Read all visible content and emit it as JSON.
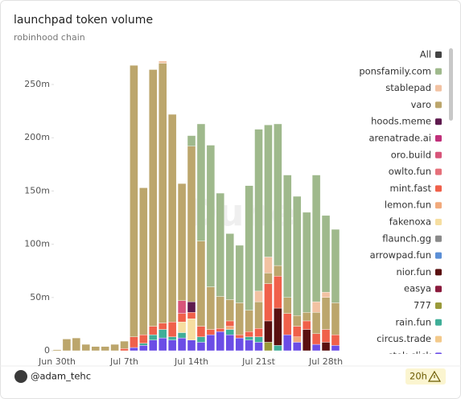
{
  "chart_data": {
    "type": "stacked_bar",
    "title": "launchpad token volume",
    "subtitle": "robinhood chain",
    "watermark": "Dune",
    "legend_all": "All",
    "footer_user": "@adam_tehc",
    "footer_age": "20h",
    "categories": [
      "Jun 30th",
      null,
      null,
      null,
      null,
      null,
      null,
      "Jul 7th",
      null,
      null,
      null,
      null,
      null,
      null,
      "Jul 14th",
      null,
      null,
      null,
      null,
      null,
      null,
      "Jul 21st",
      null,
      null,
      null,
      null,
      null,
      null,
      "Jul 28th",
      null
    ],
    "ylim": [
      0,
      280
    ],
    "yticks": [
      0,
      {
        "value": 50,
        "label": "50m"
      },
      {
        "value": 100,
        "label": "100m"
      },
      {
        "value": 150,
        "label": "150m"
      },
      {
        "value": 200,
        "label": "200m"
      },
      {
        "value": 250,
        "label": "250m"
      }
    ],
    "grid": false,
    "legend": "right",
    "series": [
      {
        "name": "ponsfamily.com",
        "color": "#9fb98c",
        "values": [
          0,
          0,
          0,
          0,
          0,
          0,
          0,
          0,
          0,
          0,
          0,
          0,
          0,
          0,
          10,
          110,
          133,
          97,
          62,
          54,
          117,
          152,
          124,
          133,
          115,
          112,
          94,
          119,
          72,
          69
        ]
      },
      {
        "name": "stablepad",
        "color": "#f2c2a2",
        "values": [
          0,
          0,
          0,
          0,
          0,
          0,
          0,
          0,
          0,
          0,
          0,
          2,
          0,
          0,
          0,
          0,
          0,
          0,
          0,
          0,
          0,
          10,
          15,
          0,
          0,
          0,
          0,
          10,
          5,
          0
        ]
      },
      {
        "name": "varo",
        "color": "#bca66c",
        "values": [
          1,
          11,
          12,
          6,
          4,
          4,
          6,
          7,
          255,
          138,
          241,
          244,
          195,
          110,
          146,
          80,
          40,
          30,
          20,
          30,
          20,
          25,
          10,
          10,
          15,
          10,
          8,
          20,
          30,
          30
        ]
      },
      {
        "name": "hoods.meme",
        "color": "#5e1a4e",
        "values": [
          0,
          0,
          0,
          0,
          0,
          0,
          0,
          0,
          0,
          0,
          0,
          0,
          0,
          0,
          10,
          0,
          0,
          0,
          0,
          0,
          0,
          0,
          0,
          0,
          0,
          0,
          0,
          0,
          0,
          0
        ]
      },
      {
        "name": "arenatrade.ai",
        "color": "#c0307a",
        "values": [
          0,
          0,
          0,
          0,
          0,
          0,
          0,
          0,
          0,
          0,
          0,
          0,
          0,
          0,
          0,
          0,
          0,
          0,
          0,
          0,
          0,
          0,
          0,
          0,
          0,
          0,
          0,
          0,
          0,
          0
        ]
      },
      {
        "name": "oro.build",
        "color": "#d8557a",
        "values": [
          0,
          0,
          0,
          0,
          0,
          0,
          0,
          0,
          0,
          0,
          0,
          0,
          0,
          12,
          0,
          0,
          0,
          0,
          0,
          0,
          0,
          0,
          0,
          0,
          0,
          0,
          0,
          0,
          0,
          0
        ]
      },
      {
        "name": "owlto.fun",
        "color": "#e6707a",
        "values": [
          0,
          0,
          0,
          0,
          0,
          0,
          0,
          0,
          0,
          0,
          0,
          0,
          0,
          0,
          0,
          0,
          0,
          0,
          0,
          0,
          0,
          0,
          0,
          0,
          0,
          0,
          0,
          0,
          0,
          0
        ]
      },
      {
        "name": "mint.fast",
        "color": "#f0604a",
        "values": [
          0,
          0,
          0,
          0,
          0,
          0,
          0,
          2,
          10,
          8,
          8,
          6,
          14,
          8,
          6,
          10,
          5,
          3,
          5,
          3,
          5,
          8,
          35,
          30,
          20,
          10,
          8,
          10,
          12,
          10
        ]
      },
      {
        "name": "lemon.fun",
        "color": "#f2aa7c",
        "values": [
          0,
          0,
          0,
          0,
          0,
          0,
          0,
          0,
          0,
          0,
          0,
          0,
          0,
          0,
          0,
          0,
          0,
          0,
          3,
          0,
          0,
          0,
          0,
          0,
          0,
          5,
          0,
          0,
          0,
          0
        ]
      },
      {
        "name": "fakenoxa",
        "color": "#f6dea0",
        "values": [
          0,
          0,
          0,
          0,
          0,
          0,
          0,
          0,
          0,
          0,
          0,
          0,
          0,
          10,
          20,
          0,
          0,
          0,
          0,
          0,
          0,
          0,
          0,
          0,
          0,
          0,
          0,
          0,
          0,
          0
        ]
      },
      {
        "name": "flaunch.gg",
        "color": "#8a8a8a",
        "values": [
          0,
          0,
          0,
          0,
          0,
          0,
          0,
          0,
          0,
          0,
          0,
          0,
          0,
          0,
          0,
          0,
          0,
          0,
          0,
          0,
          0,
          0,
          0,
          0,
          0,
          0,
          0,
          0,
          0,
          0
        ]
      },
      {
        "name": "arrowpad.fun",
        "color": "#5b8fd6",
        "values": [
          0,
          0,
          0,
          0,
          0,
          0,
          0,
          0,
          0,
          0,
          0,
          0,
          0,
          0,
          0,
          0,
          0,
          0,
          0,
          0,
          0,
          0,
          0,
          0,
          0,
          0,
          0,
          0,
          0,
          0
        ]
      },
      {
        "name": "nior.fun",
        "color": "#5a1010",
        "values": [
          0,
          0,
          0,
          0,
          0,
          0,
          0,
          0,
          0,
          0,
          0,
          0,
          0,
          0,
          0,
          0,
          0,
          0,
          0,
          0,
          0,
          0,
          20,
          35,
          0,
          0,
          20,
          0,
          8,
          0
        ]
      },
      {
        "name": "easya",
        "color": "#8a1a3c",
        "values": [
          0,
          0,
          0,
          0,
          0,
          0,
          0,
          0,
          0,
          0,
          0,
          0,
          0,
          0,
          0,
          0,
          0,
          0,
          0,
          0,
          0,
          0,
          0,
          0,
          0,
          0,
          0,
          0,
          0,
          0
        ]
      },
      {
        "name": "777",
        "color": "#9a9a3a",
        "values": [
          0,
          0,
          0,
          0,
          0,
          0,
          0,
          0,
          0,
          0,
          0,
          0,
          0,
          0,
          0,
          0,
          0,
          0,
          0,
          0,
          0,
          0,
          8,
          0,
          0,
          0,
          0,
          0,
          0,
          0
        ]
      },
      {
        "name": "rain.fun",
        "color": "#3fae98",
        "values": [
          0,
          0,
          0,
          0,
          0,
          0,
          0,
          0,
          0,
          2,
          5,
          8,
          3,
          5,
          0,
          5,
          0,
          0,
          5,
          0,
          3,
          5,
          0,
          5,
          0,
          0,
          0,
          0,
          0,
          0
        ]
      },
      {
        "name": "circus.trade",
        "color": "#f3c98a",
        "values": [
          0,
          0,
          0,
          0,
          0,
          0,
          0,
          0,
          0,
          0,
          0,
          0,
          0,
          0,
          0,
          0,
          0,
          0,
          0,
          0,
          0,
          0,
          0,
          0,
          0,
          0,
          0,
          0,
          0,
          0
        ]
      },
      {
        "name": "stok.click",
        "color": "#6b4de6",
        "values": [
          0,
          0,
          0,
          0,
          0,
          0,
          0,
          0,
          3,
          5,
          10,
          12,
          10,
          12,
          10,
          8,
          15,
          18,
          15,
          12,
          10,
          8,
          0,
          0,
          15,
          8,
          0,
          6,
          0,
          5
        ]
      }
    ]
  }
}
